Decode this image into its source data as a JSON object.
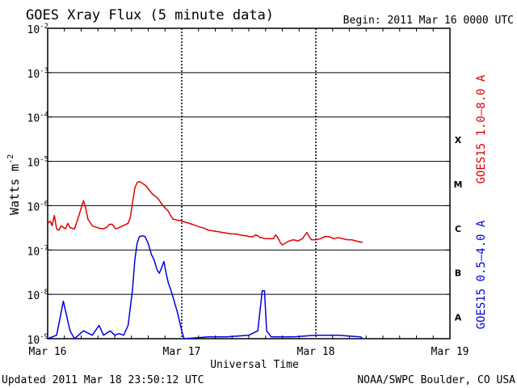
{
  "chart_data": {
    "type": "line",
    "title": "GOES Xray Flux (5 minute data)",
    "begin_label": "Begin:  2011 Mar 16 0000 UTC",
    "ylabel": "Watts m",
    "ylabel_superscript": "-2",
    "xlabel": "Universal Time",
    "y_scale": "log",
    "ylim": [
      1e-09,
      0.01
    ],
    "y_ticks": [
      {
        "base": "10",
        "exp": "-9"
      },
      {
        "base": "10",
        "exp": "-8"
      },
      {
        "base": "10",
        "exp": "-7"
      },
      {
        "base": "10",
        "exp": "-6"
      },
      {
        "base": "10",
        "exp": "-5"
      },
      {
        "base": "10",
        "exp": "-4"
      },
      {
        "base": "10",
        "exp": "-3"
      },
      {
        "base": "10",
        "exp": "-2"
      }
    ],
    "x_ticks": [
      "Mar 16",
      "Mar 17",
      "Mar 18",
      "Mar 19"
    ],
    "flare_classes": [
      "X",
      "M",
      "C",
      "B",
      "A"
    ],
    "grid": "horizontal-solid, vertical-dashed",
    "series": [
      {
        "name": "GOES15 1.0–8.0 A",
        "color": "#e00000",
        "points": [
          [
            0,
            4e-07
          ],
          [
            0.06,
            4.5e-07
          ],
          [
            0.1,
            3.5e-07
          ],
          [
            0.15,
            6e-07
          ],
          [
            0.2,
            3e-07
          ],
          [
            0.25,
            2.8e-07
          ],
          [
            0.3,
            3.5e-07
          ],
          [
            0.4,
            3e-07
          ],
          [
            0.45,
            4e-07
          ],
          [
            0.5,
            3.2e-07
          ],
          [
            0.6,
            3e-07
          ],
          [
            0.7,
            6e-07
          ],
          [
            0.8,
            1.3e-06
          ],
          [
            0.85,
            9e-07
          ],
          [
            0.9,
            5e-07
          ],
          [
            1.0,
            3.5e-07
          ],
          [
            1.15,
            3.1e-07
          ],
          [
            1.25,
            3e-07
          ],
          [
            1.33,
            3.3e-07
          ],
          [
            1.38,
            3.8e-07
          ],
          [
            1.45,
            3.8e-07
          ],
          [
            1.52,
            3e-07
          ],
          [
            1.6,
            3.2e-07
          ],
          [
            1.7,
            3.6e-07
          ],
          [
            1.8,
            4e-07
          ],
          [
            1.85,
            5.5e-07
          ],
          [
            1.9,
            1.2e-06
          ],
          [
            1.95,
            2.5e-06
          ],
          [
            2.0,
            3.3e-06
          ],
          [
            2.05,
            3.5e-06
          ],
          [
            2.1,
            3.3e-06
          ],
          [
            2.2,
            2.8e-06
          ],
          [
            2.28,
            2.2e-06
          ],
          [
            2.35,
            1.8e-06
          ],
          [
            2.42,
            1.6e-06
          ],
          [
            2.48,
            1.4e-06
          ],
          [
            2.55,
            1.1e-06
          ],
          [
            2.62,
            9e-07
          ],
          [
            2.7,
            7.5e-07
          ],
          [
            2.75,
            6e-07
          ],
          [
            2.8,
            5e-07
          ],
          [
            2.9,
            4.7e-07
          ],
          [
            2.98,
            4.6e-07
          ],
          [
            3.0,
            4.5e-07
          ],
          [
            3.1,
            4.2e-07
          ],
          [
            3.2,
            3.9e-07
          ],
          [
            3.3,
            3.6e-07
          ],
          [
            3.4,
            3.3e-07
          ],
          [
            3.5,
            3.1e-07
          ],
          [
            3.6,
            2.8e-07
          ],
          [
            3.7,
            2.7e-07
          ],
          [
            3.8,
            2.6e-07
          ],
          [
            3.9,
            2.5e-07
          ],
          [
            4.0,
            2.4e-07
          ],
          [
            4.1,
            2.3e-07
          ],
          [
            4.2,
            2.3e-07
          ],
          [
            4.3,
            2.2e-07
          ],
          [
            4.4,
            2.1e-07
          ],
          [
            4.45,
            2.1e-07
          ],
          [
            4.5,
            2e-07
          ],
          [
            4.55,
            2e-07
          ],
          [
            4.6,
            2e-07
          ],
          [
            4.65,
            2.2e-07
          ],
          [
            4.7,
            2.1e-07
          ],
          [
            4.75,
            1.9e-07
          ],
          [
            4.8,
            1.9e-07
          ],
          [
            4.85,
            1.8e-07
          ],
          [
            4.9,
            1.8e-07
          ],
          [
            4.95,
            1.8e-07
          ],
          [
            5.0,
            1.8e-07
          ],
          [
            5.05,
            1.8e-07
          ],
          [
            5.1,
            2.2e-07
          ],
          [
            5.15,
            1.9e-07
          ],
          [
            5.2,
            1.5e-07
          ],
          [
            5.25,
            1.3e-07
          ],
          [
            5.4,
            1.6e-07
          ],
          [
            5.5,
            1.7e-07
          ],
          [
            5.6,
            1.6e-07
          ],
          [
            5.7,
            1.8e-07
          ],
          [
            5.8,
            2.5e-07
          ],
          [
            5.85,
            2e-07
          ],
          [
            5.9,
            1.7e-07
          ],
          [
            6.0,
            1.7e-07
          ],
          [
            6.1,
            1.8e-07
          ],
          [
            6.2,
            2e-07
          ],
          [
            6.3,
            2e-07
          ],
          [
            6.4,
            1.8e-07
          ],
          [
            6.5,
            1.9e-07
          ],
          [
            6.6,
            1.8e-07
          ],
          [
            6.7,
            1.7e-07
          ],
          [
            6.8,
            1.7e-07
          ],
          [
            6.9,
            1.6e-07
          ],
          [
            7.0,
            1.5e-07
          ],
          [
            7.05,
            1.5e-07
          ]
        ]
      },
      {
        "name": "GOES15 0.5–4.0 A",
        "color": "#0000e0",
        "points": [
          [
            0,
            1e-09
          ],
          [
            0.2,
            1.2e-09
          ],
          [
            0.35,
            7e-09
          ],
          [
            0.5,
            1.5e-09
          ],
          [
            0.6,
            1e-09
          ],
          [
            0.8,
            1.5e-09
          ],
          [
            1.0,
            1.2e-09
          ],
          [
            1.15,
            2e-09
          ],
          [
            1.25,
            1.2e-09
          ],
          [
            1.4,
            1.5e-09
          ],
          [
            1.5,
            1.2e-09
          ],
          [
            1.6,
            1.3e-09
          ],
          [
            1.7,
            1.2e-09
          ],
          [
            1.8,
            2e-09
          ],
          [
            1.9,
            1.3e-08
          ],
          [
            1.95,
            6e-08
          ],
          [
            2.0,
            1.4e-07
          ],
          [
            2.05,
            2e-07
          ],
          [
            2.12,
            2.1e-07
          ],
          [
            2.18,
            2e-07
          ],
          [
            2.25,
            1.4e-07
          ],
          [
            2.32,
            8e-08
          ],
          [
            2.38,
            6e-08
          ],
          [
            2.45,
            3.5e-08
          ],
          [
            2.5,
            3e-08
          ],
          [
            2.55,
            4e-08
          ],
          [
            2.6,
            5.5e-08
          ],
          [
            2.65,
            3e-08
          ],
          [
            2.7,
            1.8e-08
          ],
          [
            2.75,
            1.3e-08
          ],
          [
            2.8,
            9e-09
          ],
          [
            2.85,
            6e-09
          ],
          [
            2.9,
            4e-09
          ],
          [
            2.95,
            2.5e-09
          ],
          [
            3.0,
            1.5e-09
          ],
          [
            3.05,
            1e-09
          ],
          [
            3.6,
            1.1e-09
          ],
          [
            4.0,
            1.1e-09
          ],
          [
            4.5,
            1.2e-09
          ],
          [
            4.7,
            1.5e-09
          ],
          [
            4.8,
            1.2e-08
          ],
          [
            4.85,
            1.2e-08
          ],
          [
            4.9,
            1.5e-09
          ],
          [
            5.0,
            1.1e-09
          ],
          [
            5.5,
            1.1e-09
          ],
          [
            6.0,
            1.2e-09
          ],
          [
            6.5,
            1.2e-09
          ],
          [
            7.0,
            1.1e-09
          ],
          [
            7.05,
            1e-09
          ]
        ]
      }
    ]
  },
  "footer": {
    "updated": "Updated 2011 Mar 18 23:50:12 UTC",
    "credit": "NOAA/SWPC Boulder, CO USA"
  }
}
